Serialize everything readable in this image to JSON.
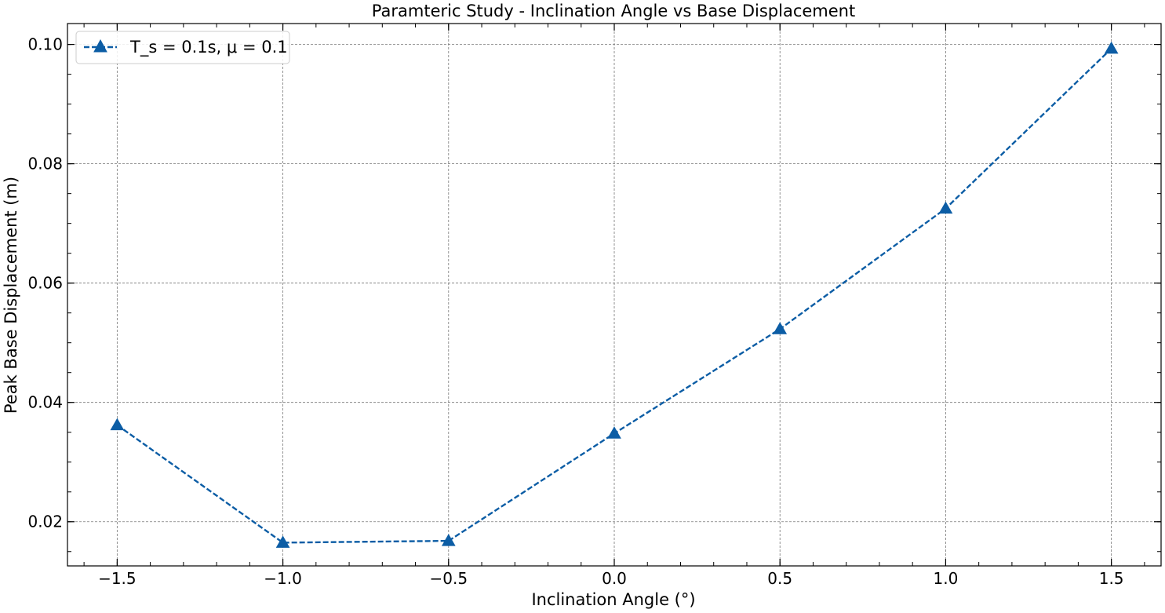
{
  "chart_data": {
    "type": "line",
    "title": "Paramteric Study - Inclination Angle vs Base Displacement",
    "xlabel": "Inclination Angle (°)",
    "ylabel": "Peak Base Displacement (m)",
    "xlim": [
      -1.65,
      1.65
    ],
    "ylim": [
      0.0126,
      0.1035
    ],
    "xticks": [
      -1.5,
      -1.0,
      -0.5,
      0.0,
      0.5,
      1.0,
      1.5
    ],
    "xtick_labels": [
      "−1.5",
      "−1.0",
      "−0.5",
      "0.0",
      "0.5",
      "1.0",
      "1.5"
    ],
    "yticks": [
      0.02,
      0.04,
      0.06,
      0.08,
      0.1
    ],
    "ytick_labels": [
      "0.02",
      "0.04",
      "0.06",
      "0.08",
      "0.10"
    ],
    "grid": true,
    "legend_position": "top-left",
    "series": [
      {
        "name": "T_s = 0.1s, μ = 0.1",
        "color": "#0c5da5",
        "line_style": "dashed",
        "marker": "triangle-up",
        "x": [
          -1.5,
          -1.0,
          -0.5,
          0.0,
          0.5,
          1.0,
          1.5
        ],
        "y": [
          0.0362,
          0.0165,
          0.0168,
          0.0348,
          0.0523,
          0.0725,
          0.0993
        ]
      }
    ]
  }
}
